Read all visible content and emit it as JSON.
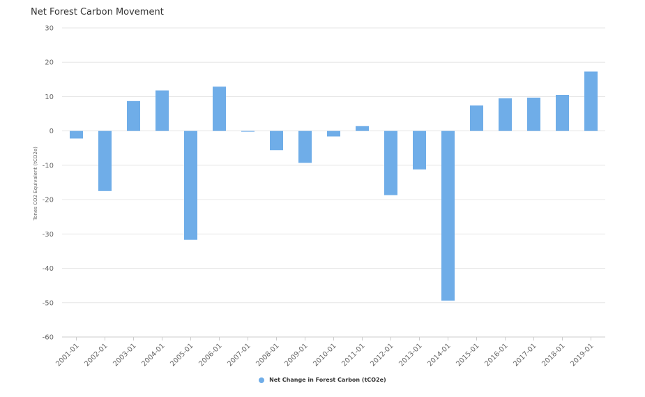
{
  "colors": {
    "bar": "#6fade8",
    "grid": "#e6e6e6",
    "axis": "#cccccc"
  },
  "chart_data": {
    "type": "bar",
    "title": "Net Forest Carbon Movement",
    "xlabel": "",
    "ylabel": "Tones CO2 Equivalent (tCO2e)",
    "ylim": [
      -60,
      30
    ],
    "yticks": [
      30,
      20,
      10,
      0,
      -10,
      -20,
      -30,
      -40,
      -50,
      -60
    ],
    "grid": true,
    "legend_position": "bottom-center",
    "categories": [
      "2001-01",
      "2002-01",
      "2003-01",
      "2004-01",
      "2005-01",
      "2006-01",
      "2007-01",
      "2008-01",
      "2009-01",
      "2010-01",
      "2011-01",
      "2012-01",
      "2013-01",
      "2014-01",
      "2015-01",
      "2016-01",
      "2017-01",
      "2018-01",
      "2019-01"
    ],
    "series": [
      {
        "name": "Net Change in Forest Carbon (tCO2e)",
        "values": [
          -2.2,
          -17.5,
          8.7,
          11.8,
          -31.7,
          12.9,
          -0.2,
          -5.6,
          -9.3,
          -1.6,
          1.4,
          -18.7,
          -11.2,
          -49.4,
          7.4,
          9.5,
          9.7,
          10.5,
          17.3
        ]
      }
    ]
  }
}
